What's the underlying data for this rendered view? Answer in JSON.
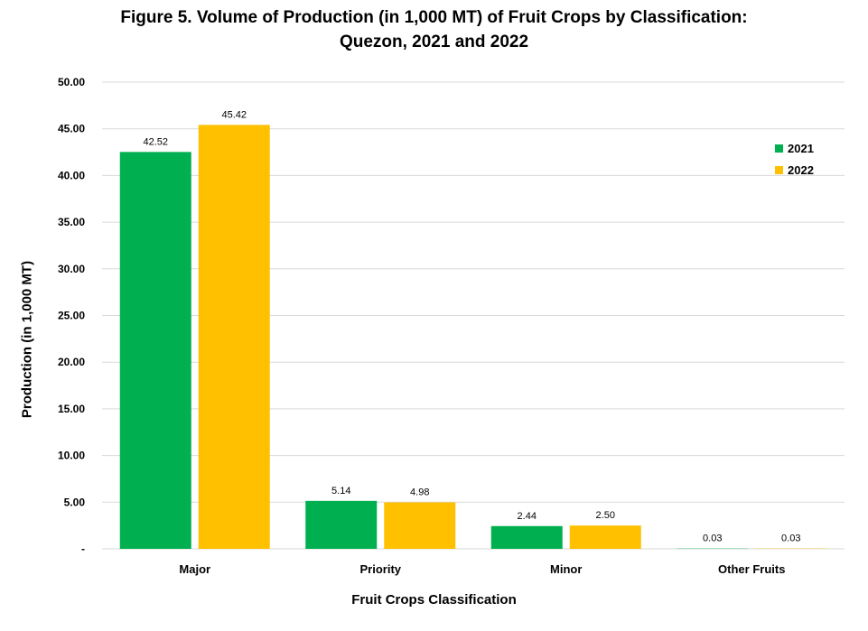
{
  "chart_data": {
    "type": "bar",
    "title_line1": "Figure 5. Volume of Production (in 1,000 MT) of Fruit Crops by Classification:",
    "title_line2": "Quezon, 2021 and 2022",
    "xlabel": "Fruit Crops Classification",
    "ylabel": "Production (in 1,000 MT)",
    "categories": [
      "Major",
      "Priority",
      "Minor",
      "Other Fruits"
    ],
    "series": [
      {
        "name": "2021",
        "color": "#00B050",
        "values": [
          42.52,
          5.14,
          2.44,
          0.03
        ],
        "labels": [
          "42.52",
          "5.14",
          "2.44",
          "0.03"
        ]
      },
      {
        "name": "2022",
        "color": "#FFC000",
        "values": [
          45.42,
          4.98,
          2.5,
          0.03
        ],
        "labels": [
          "45.42",
          "4.98",
          "2.50",
          "0.03"
        ]
      }
    ],
    "ylim": [
      0,
      50
    ],
    "yticks": [
      0,
      5,
      10,
      15,
      20,
      25,
      30,
      35,
      40,
      45,
      50
    ],
    "ytick_labels": [
      "-",
      "5.00",
      "10.00",
      "15.00",
      "20.00",
      "25.00",
      "30.00",
      "35.00",
      "40.00",
      "45.00",
      "50.00"
    ],
    "grid": true,
    "legend_position": "top-right",
    "gridline_color": "#D9D9D9"
  }
}
